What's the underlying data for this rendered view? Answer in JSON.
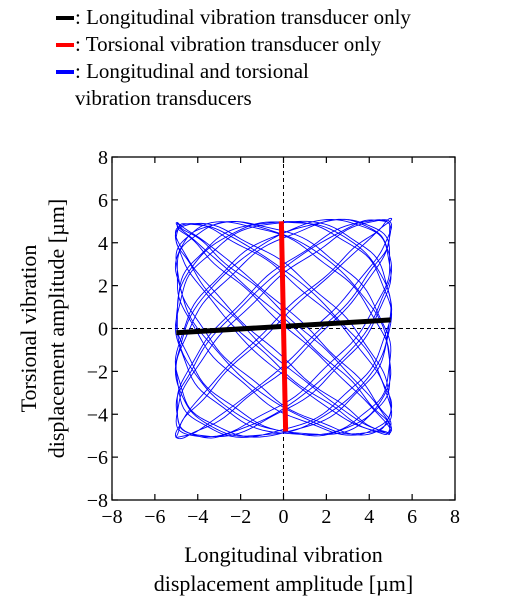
{
  "legend": [
    {
      "text": ": Longitudinal vibration transducer only",
      "color": "#000000"
    },
    {
      "text": ": Torsional vibration transducer only",
      "color": "#ff0000"
    },
    {
      "text": ": Longitudinal and torsional",
      "text2": "vibration transducers",
      "color": "#0000ff"
    }
  ],
  "chart_data": {
    "type": "scatter",
    "xlabel": [
      "Longitudinal vibration",
      "displacement amplitude [µm]"
    ],
    "ylabel": [
      "Torsional vibration",
      "displacement amplitude [µm]"
    ],
    "xlim": [
      -8,
      8
    ],
    "ylim": [
      -8,
      8
    ],
    "xticks": [
      "−8",
      "−6",
      "−4",
      "−2",
      "0",
      "2",
      "4",
      "6",
      "8"
    ],
    "yticks": [
      "−8",
      "−6",
      "−4",
      "−2",
      "0",
      "2",
      "4",
      "6",
      "8"
    ],
    "series": [
      {
        "name": "Longitudinal vibration transducer only",
        "color": "#000000",
        "points": [
          [
            -5,
            -0.2
          ],
          [
            5,
            0.4
          ]
        ]
      },
      {
        "name": "Torsional vibration transducer only",
        "color": "#ff0000",
        "points": [
          [
            -0.1,
            5
          ],
          [
            0.1,
            -4.8
          ]
        ]
      },
      {
        "name": "Longitudinal and torsional vibration transducers",
        "color": "#0000ff",
        "shape": "lissajous",
        "x_amplitude": 5,
        "y_amplitude": 5,
        "corners": [
          [
            -5,
            4.8
          ],
          [
            5,
            5.2
          ],
          [
            5,
            -4.6
          ],
          [
            -5,
            -5
          ]
        ]
      }
    ],
    "grid": false,
    "zero_lines": true
  }
}
